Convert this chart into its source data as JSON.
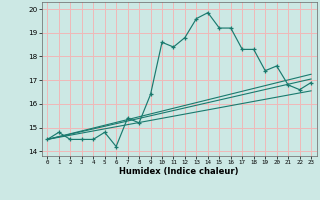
{
  "title": "",
  "xlabel": "Humidex (Indice chaleur)",
  "bg_color": "#cce8e4",
  "grid_color": "#f0b8b8",
  "line_color": "#1a7a6e",
  "ylim": [
    13.8,
    20.3
  ],
  "xlim": [
    -0.5,
    23.5
  ],
  "main_y": [
    14.5,
    14.8,
    14.5,
    14.5,
    14.5,
    14.8,
    14.2,
    15.4,
    15.2,
    16.4,
    18.6,
    18.4,
    18.8,
    19.6,
    19.85,
    19.2,
    19.2,
    18.3,
    18.3,
    17.4,
    17.6,
    16.8,
    16.6,
    16.9
  ],
  "trend1_y": [
    14.5,
    17.05
  ],
  "trend2_y": [
    14.5,
    16.55
  ],
  "trend3_y": [
    14.5,
    17.25
  ],
  "yticks": [
    14,
    15,
    16,
    17,
    18,
    19,
    20
  ],
  "xtick_labels": [
    "0",
    "1",
    "2",
    "3",
    "4",
    "5",
    "6",
    "7",
    "8",
    "9",
    "10",
    "11",
    "12",
    "13",
    "14",
    "15",
    "16",
    "17",
    "18",
    "19",
    "20",
    "21",
    "22",
    "23"
  ]
}
